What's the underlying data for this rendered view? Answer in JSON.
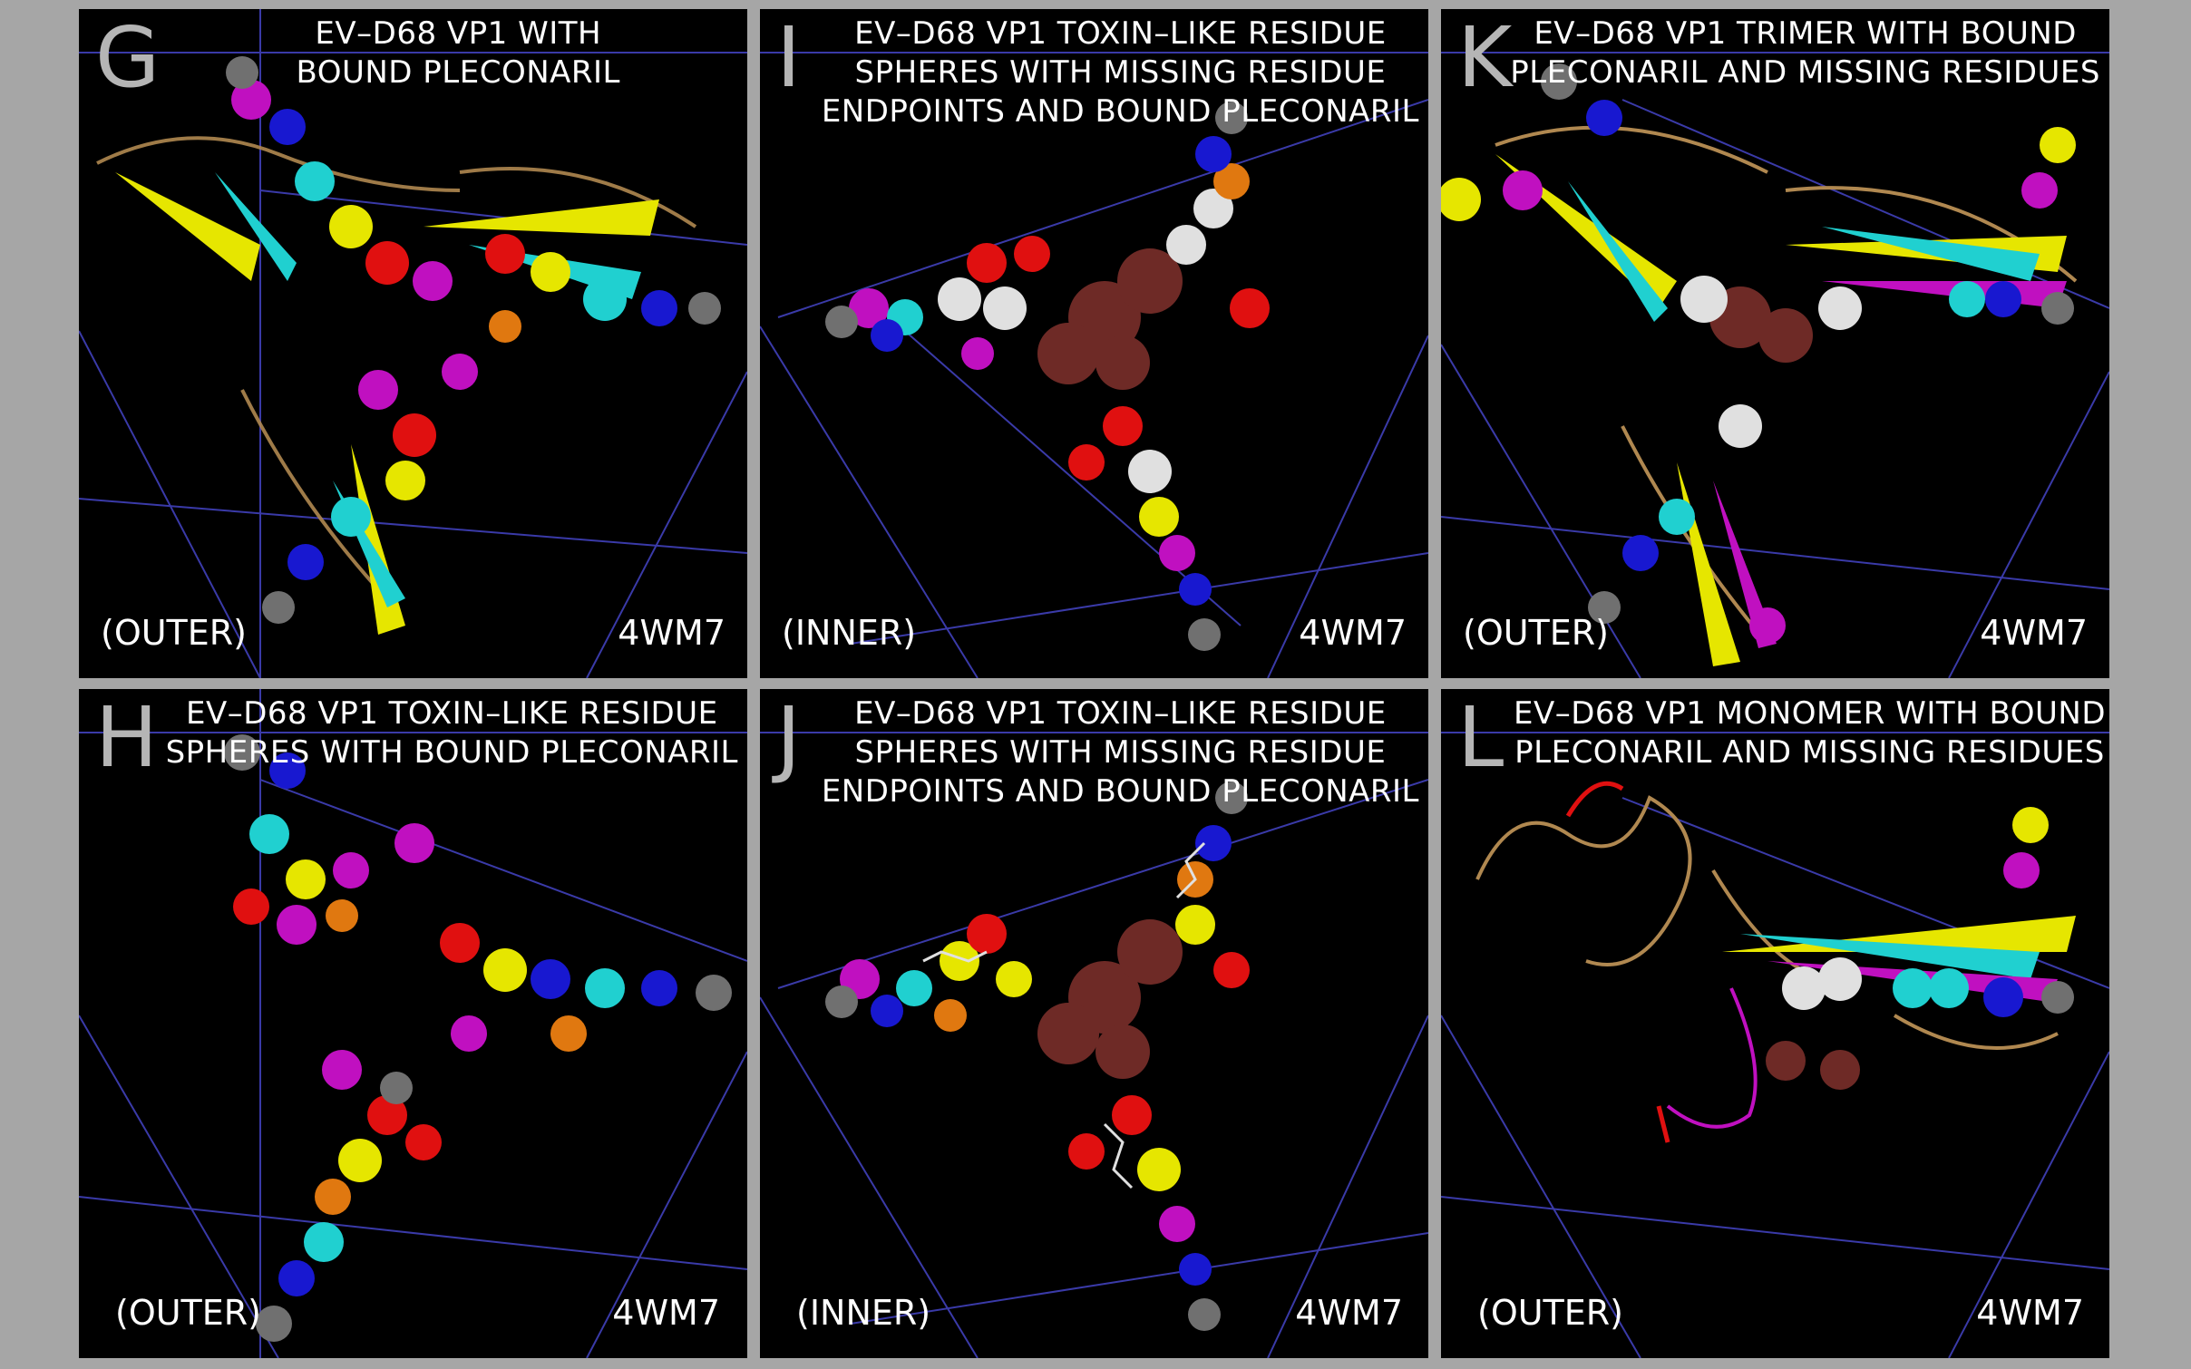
{
  "panels": [
    {
      "letter": "G",
      "title": "EV–D68 VP1 WITH\nBOUND PLECONARIL",
      "side": "(OUTER)",
      "pdb": "4WM7"
    },
    {
      "letter": "I",
      "title": "EV–D68 VP1 TOXIN–LIKE RESIDUE\nSPHERES WITH MISSING RESIDUE\nENDPOINTS AND BOUND PLECONARIL",
      "side": "(INNER)",
      "pdb": "4WM7"
    },
    {
      "letter": "K",
      "title": "EV–D68 VP1 TRIMER WITH BOUND\nPLECONARIL AND MISSING RESIDUES",
      "side": "(OUTER)",
      "pdb": "4WM7"
    },
    {
      "letter": "H",
      "title": "EV–D68 VP1 TOXIN–LIKE RESIDUE\nSPHERES WITH BOUND PLECONARIL",
      "side": "(OUTER)",
      "pdb": "4WM7"
    },
    {
      "letter": "J",
      "title": "EV–D68 VP1 TOXIN–LIKE RESIDUE\nSPHERES WITH MISSING RESIDUE\nENDPOINTS AND BOUND PLECONARIL",
      "side": "(INNER)",
      "pdb": "4WM7"
    },
    {
      "letter": "L",
      "title": "EV–D68 VP1 MONOMER WITH BOUND\nPLECONARIL AND MISSING RESIDUES",
      "side": "(OUTER)",
      "pdb": "4WM7"
    }
  ],
  "colors": {
    "background": "#000000",
    "frame": "#a6a6a6",
    "grid_lines": "#3a3aa8",
    "red": "#e01010",
    "yellow": "#e6e600",
    "magenta": "#c010c0",
    "cyan": "#20d0d0",
    "blue": "#1818d0",
    "orange": "#e07810",
    "gray": "#707070",
    "white": "#e0e0e0",
    "brown": "#6e2a26",
    "tan": "#b08850",
    "olive": "#b0b000"
  }
}
